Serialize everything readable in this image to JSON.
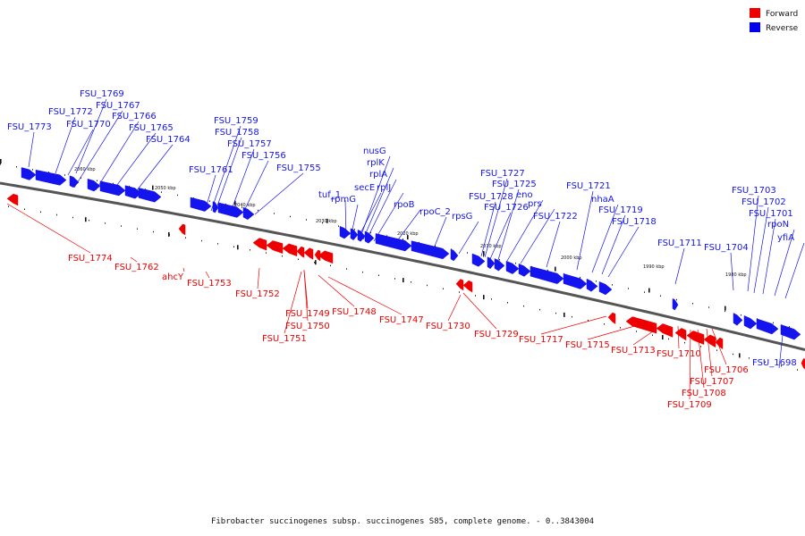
{
  "caption": "Fibrobacter succinogenes subsp. succinogenes S85, complete genome. - 0..3843004",
  "legend": [
    {
      "label": "Forward",
      "color": "#ee0000"
    },
    {
      "label": "Reverse",
      "color": "#0000ee"
    }
  ],
  "colors": {
    "forward": "#ee0000",
    "reverse": "#1414ee",
    "backbone": "#555555"
  },
  "ticks": [
    "2060 kbp",
    "2050 kbp",
    "2040 kbp",
    "2030 kbp",
    "2020 kbp",
    "2010 kbp",
    "2000 kbp",
    "1990 kbp",
    "1980 kbp"
  ],
  "reverse_genes": [
    "FSU_1773",
    "FSU_1772",
    "FSU_1769",
    "FSU_1770",
    "FSU_1767",
    "FSU_1766",
    "FSU_1765",
    "FSU_1764",
    "FSU_1761",
    "FSU_1759",
    "FSU_1758",
    "FSU_1757",
    "FSU_1756",
    "FSU_1755",
    "tuf_1",
    "rpmG",
    "secE",
    "nusG",
    "rplK",
    "rplA",
    "rplJ",
    "rpoB",
    "rpoC_2",
    "rpsG",
    "FSU_1728",
    "FSU_1727",
    "FSU_1726",
    "FSU_1725",
    "eno",
    "prs",
    "FSU_1722",
    "FSU_1721",
    "nhaA",
    "FSU_1719",
    "FSU_1718",
    "FSU_1711",
    "FSU_1704",
    "FSU_1703",
    "FSU_1702",
    "FSU_1701",
    "rpoN",
    "yfiA",
    "FSU_1698"
  ],
  "forward_genes": [
    "FSU_1774",
    "FSU_1762",
    "ahcY",
    "FSU_1753",
    "FSU_1752",
    "FSU_1749",
    "FSU_1750",
    "FSU_1751",
    "FSU_1748",
    "FSU_1747",
    "FSU_1730",
    "FSU_1729",
    "FSU_1717",
    "FSU_1715",
    "FSU_1713",
    "FSU_1710",
    "FSU_1706",
    "FSU_1707",
    "FSU_1708",
    "FSU_1709"
  ]
}
